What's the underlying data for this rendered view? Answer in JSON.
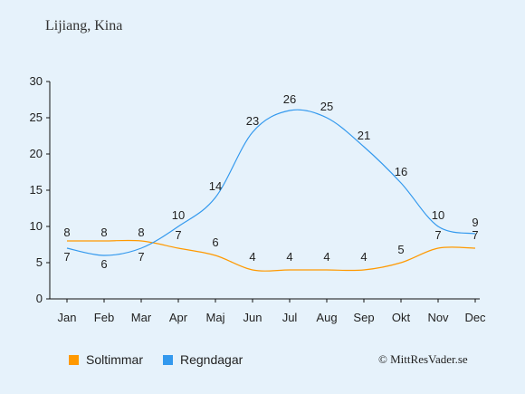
{
  "location_title": "Lijiang, Kina",
  "copyright": "© MittResVader.se",
  "chart_data": {
    "type": "line",
    "categories": [
      "Jan",
      "Feb",
      "Mar",
      "Apr",
      "Maj",
      "Jun",
      "Jul",
      "Aug",
      "Sep",
      "Okt",
      "Nov",
      "Dec"
    ],
    "ylim": [
      0,
      30
    ],
    "yticks": [
      0,
      5,
      10,
      15,
      20,
      25,
      30
    ],
    "grid": false,
    "legend_position": "bottom-left",
    "series": [
      {
        "name": "Soltimmar",
        "color": "#ff9900",
        "values": [
          8,
          8,
          8,
          7,
          6,
          4,
          4,
          4,
          4,
          5,
          7,
          7
        ]
      },
      {
        "name": "Regndagar",
        "color": "#3399ee",
        "values": [
          7,
          6,
          7,
          10,
          14,
          23,
          26,
          25,
          21,
          16,
          10,
          9
        ]
      }
    ]
  }
}
